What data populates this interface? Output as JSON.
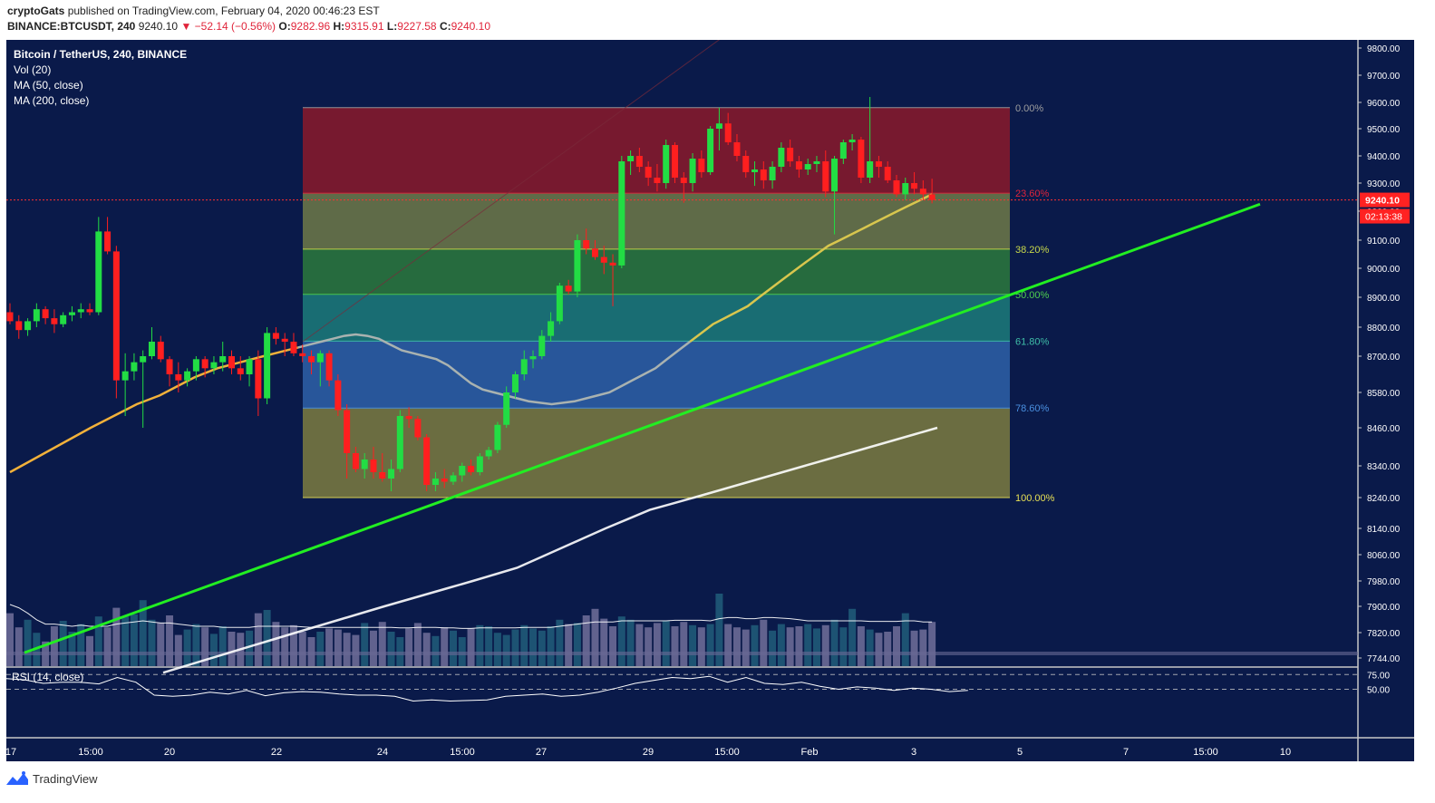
{
  "header": {
    "author": "cryptoGats",
    "published_text": "published on TradingView.com, February 04, 2020 00:46:23 EST",
    "symbol_line": "BINANCE:BTCUSDT, 240",
    "last": "9240.10",
    "change": "▼ −52.14 (−0.56%)",
    "o_label": "O:",
    "o_value": "9282.96",
    "h_label": "H:",
    "h_value": "9315.91",
    "l_label": "L:",
    "l_value": "9227.58",
    "c_label": "C:",
    "c_value": "9240.10"
  },
  "legend": [
    "Bitcoin / TetherUS, 240, BINANCE",
    "Vol (20)",
    "MA (50, close)",
    "MA (200, close)"
  ],
  "price_tag": {
    "value": "9240.10",
    "countdown": "02:13:38"
  },
  "rsi_label": "RSI (14, close)",
  "brand": "TradingView",
  "colors": {
    "background": "#0a1a4a",
    "up": "#22dd44",
    "down": "#ff1f1f",
    "ma50": "#a9b2b0",
    "ma200": "#ffffff",
    "trendline": "#22ee22",
    "price_tag": "#ff2222"
  },
  "chart_data": {
    "type": "candlestick",
    "price_axis_ticks": [
      "9800.00",
      "9700.00",
      "9600.00",
      "9500.00",
      "9400.00",
      "9300.00",
      "9200.00",
      "9100.00",
      "9000.00",
      "8900.00",
      "8800.00",
      "8700.00",
      "8580.00",
      "8460.00",
      "8340.00",
      "8240.00",
      "8140.00",
      "8060.00",
      "7980.00",
      "7900.00",
      "7820.00",
      "7744.00"
    ],
    "rsi_ticks": [
      "75.00",
      "50.00"
    ],
    "time_axis_labels": [
      "17",
      "15:00",
      "20",
      "22",
      "24",
      "15:00",
      "27",
      "29",
      "15:00",
      "Feb",
      "3",
      "5",
      "7",
      "15:00",
      "10"
    ],
    "fibonacci": {
      "high": 9580,
      "low": 8240,
      "levels": [
        {
          "label": "0.00%",
          "price": 9580,
          "fill": "#8b1a2a",
          "text_color": "#9e9e9e"
        },
        {
          "label": "23.60%",
          "price": 9264,
          "fill": "#6e7a48",
          "text_color": "#e0243a"
        },
        {
          "label": "38.20%",
          "price": 9068,
          "fill": "#2c7a3c",
          "text_color": "#c9d94a"
        },
        {
          "label": "50.00%",
          "price": 8910,
          "fill": "#1c7d7a",
          "text_color": "#4fcf4f"
        },
        {
          "label": "61.80%",
          "price": 8752,
          "fill": "#2e62a8",
          "text_color": "#3fbfa8"
        },
        {
          "label": "78.60%",
          "price": 8527,
          "fill": "#7d7d40",
          "text_color": "#4a90e0"
        },
        {
          "label": "100.00%",
          "price": 8240,
          "fill": "#7d7d40",
          "text_color": "#e7e055"
        }
      ]
    },
    "candles": [
      [
        8850,
        8880,
        8810,
        8820
      ],
      [
        8820,
        8840,
        8760,
        8790
      ],
      [
        8790,
        8830,
        8770,
        8820
      ],
      [
        8820,
        8880,
        8800,
        8860
      ],
      [
        8860,
        8870,
        8810,
        8830
      ],
      [
        8830,
        8860,
        8780,
        8810
      ],
      [
        8810,
        8850,
        8800,
        8840
      ],
      [
        8840,
        8870,
        8820,
        8850
      ],
      [
        8850,
        8880,
        8830,
        8860
      ],
      [
        8860,
        8880,
        8840,
        8850
      ],
      [
        8850,
        9180,
        8840,
        9130
      ],
      [
        9130,
        9180,
        9050,
        9060
      ],
      [
        9060,
        9080,
        8560,
        8620
      ],
      [
        8620,
        8710,
        8500,
        8650
      ],
      [
        8650,
        8710,
        8620,
        8680
      ],
      [
        8680,
        8720,
        8460,
        8700
      ],
      [
        8700,
        8800,
        8690,
        8750
      ],
      [
        8750,
        8770,
        8680,
        8690
      ],
      [
        8690,
        8700,
        8600,
        8640
      ],
      [
        8640,
        8680,
        8580,
        8620
      ],
      [
        8620,
        8660,
        8600,
        8650
      ],
      [
        8650,
        8700,
        8620,
        8690
      ],
      [
        8690,
        8700,
        8630,
        8660
      ],
      [
        8660,
        8700,
        8640,
        8680
      ],
      [
        8680,
        8750,
        8650,
        8700
      ],
      [
        8700,
        8720,
        8640,
        8660
      ],
      [
        8660,
        8700,
        8620,
        8640
      ],
      [
        8640,
        8700,
        8600,
        8690
      ],
      [
        8690,
        8720,
        8500,
        8560
      ],
      [
        8560,
        8800,
        8540,
        8780
      ],
      [
        8780,
        8800,
        8740,
        8760
      ],
      [
        8760,
        8780,
        8700,
        8750
      ],
      [
        8750,
        8780,
        8700,
        8710
      ],
      [
        8710,
        8740,
        8680,
        8700
      ],
      [
        8700,
        8720,
        8640,
        8680
      ],
      [
        8680,
        8720,
        8600,
        8710
      ],
      [
        8710,
        8720,
        8600,
        8620
      ],
      [
        8620,
        8640,
        8500,
        8520
      ],
      [
        8520,
        8540,
        8300,
        8380
      ],
      [
        8380,
        8400,
        8320,
        8330
      ],
      [
        8330,
        8380,
        8300,
        8360
      ],
      [
        8360,
        8400,
        8300,
        8320
      ],
      [
        8320,
        8380,
        8290,
        8300
      ],
      [
        8300,
        8360,
        8260,
        8330
      ],
      [
        8330,
        8520,
        8320,
        8500
      ],
      [
        8500,
        8530,
        8460,
        8490
      ],
      [
        8490,
        8500,
        8420,
        8430
      ],
      [
        8430,
        8440,
        8260,
        8280
      ],
      [
        8280,
        8320,
        8260,
        8300
      ],
      [
        8300,
        8330,
        8270,
        8290
      ],
      [
        8290,
        8320,
        8280,
        8310
      ],
      [
        8310,
        8350,
        8290,
        8340
      ],
      [
        8340,
        8360,
        8310,
        8320
      ],
      [
        8320,
        8380,
        8310,
        8370
      ],
      [
        8370,
        8400,
        8360,
        8390
      ],
      [
        8390,
        8480,
        8380,
        8470
      ],
      [
        8470,
        8600,
        8460,
        8580
      ],
      [
        8580,
        8650,
        8560,
        8640
      ],
      [
        8640,
        8720,
        8620,
        8690
      ],
      [
        8690,
        8720,
        8660,
        8700
      ],
      [
        8700,
        8790,
        8690,
        8770
      ],
      [
        8770,
        8850,
        8750,
        8820
      ],
      [
        8820,
        8950,
        8810,
        8940
      ],
      [
        8940,
        8960,
        8910,
        8920
      ],
      [
        8920,
        9120,
        8900,
        9100
      ],
      [
        9100,
        9140,
        9050,
        9070
      ],
      [
        9070,
        9100,
        9030,
        9040
      ],
      [
        9040,
        9080,
        8980,
        9020
      ],
      [
        9020,
        9050,
        8870,
        9010
      ],
      [
        9010,
        9400,
        9000,
        9380
      ],
      [
        9380,
        9420,
        9330,
        9400
      ],
      [
        9400,
        9430,
        9340,
        9360
      ],
      [
        9360,
        9380,
        9290,
        9320
      ],
      [
        9320,
        9370,
        9270,
        9300
      ],
      [
        9300,
        9460,
        9280,
        9440
      ],
      [
        9440,
        9450,
        9300,
        9320
      ],
      [
        9320,
        9340,
        9230,
        9300
      ],
      [
        9300,
        9410,
        9270,
        9390
      ],
      [
        9390,
        9420,
        9320,
        9340
      ],
      [
        9340,
        9510,
        9330,
        9500
      ],
      [
        9500,
        9580,
        9420,
        9520
      ],
      [
        9520,
        9560,
        9440,
        9450
      ],
      [
        9450,
        9480,
        9380,
        9400
      ],
      [
        9400,
        9420,
        9320,
        9340
      ],
      [
        9340,
        9380,
        9290,
        9350
      ],
      [
        9350,
        9380,
        9280,
        9310
      ],
      [
        9310,
        9380,
        9280,
        9360
      ],
      [
        9360,
        9450,
        9340,
        9430
      ],
      [
        9430,
        9460,
        9360,
        9380
      ],
      [
        9380,
        9400,
        9320,
        9350
      ],
      [
        9350,
        9390,
        9330,
        9370
      ],
      [
        9370,
        9400,
        9340,
        9380
      ],
      [
        9380,
        9420,
        9250,
        9270
      ],
      [
        9270,
        9400,
        9120,
        9390
      ],
      [
        9390,
        9460,
        9370,
        9450
      ],
      [
        9450,
        9480,
        9420,
        9460
      ],
      [
        9460,
        9470,
        9300,
        9320
      ],
      [
        9320,
        9620,
        9300,
        9380
      ],
      [
        9380,
        9400,
        9320,
        9360
      ],
      [
        9360,
        9380,
        9300,
        9310
      ],
      [
        9310,
        9330,
        9250,
        9260
      ],
      [
        9260,
        9320,
        9240,
        9300
      ],
      [
        9300,
        9340,
        9260,
        9280
      ],
      [
        9280,
        9310,
        9240,
        9260
      ],
      [
        9260,
        9316,
        9228,
        9240
      ]
    ],
    "volume": [
      820,
      690,
      760,
      640,
      560,
      700,
      750,
      650,
      720,
      610,
      790,
      690,
      870,
      790,
      810,
      940,
      760,
      730,
      800,
      620,
      670,
      720,
      690,
      630,
      700,
      650,
      640,
      660,
      820,
      850,
      740,
      690,
      710,
      650,
      600,
      650,
      680,
      670,
      640,
      620,
      730,
      660,
      740,
      650,
      600,
      680,
      730,
      640,
      610,
      690,
      660,
      600,
      680,
      710,
      700,
      640,
      620,
      670,
      710,
      680,
      660,
      700,
      760,
      720,
      730,
      800,
      860,
      770,
      700,
      790,
      760,
      720,
      690,
      730,
      750,
      700,
      740,
      710,
      690,
      720,
      1000,
      720,
      690,
      670,
      710,
      760,
      660,
      720,
      690,
      700,
      720,
      680,
      710,
      760,
      690,
      860,
      700,
      670,
      640,
      650,
      700,
      820,
      660,
      670,
      740
    ],
    "volume_avg": [
      900,
      870,
      820,
      760,
      720,
      720,
      710,
      700,
      710,
      700,
      700,
      700,
      720,
      730,
      740,
      750,
      740,
      730,
      730,
      720,
      710,
      700,
      700,
      700,
      690,
      690,
      690,
      690,
      700,
      700,
      700,
      700,
      700,
      695,
      690,
      690,
      690,
      690,
      690,
      690,
      690,
      690,
      690,
      690,
      685,
      685,
      690,
      690,
      690,
      685,
      685,
      680,
      680,
      685,
      685,
      685,
      685,
      685,
      690,
      690,
      690,
      690,
      700,
      710,
      720,
      730,
      740,
      740,
      740,
      750,
      750,
      750,
      750,
      750,
      750,
      755,
      755,
      755,
      755,
      750,
      770,
      780,
      780,
      770,
      770,
      780,
      780,
      775,
      770,
      760,
      750,
      750,
      750,
      750,
      750,
      750,
      750,
      745,
      745,
      745,
      745,
      750,
      750,
      740,
      740
    ],
    "ma50": [
      8320,
      8340,
      8360,
      8380,
      8400,
      8420,
      8440,
      8460,
      8480,
      8500,
      8520,
      8540,
      8555,
      8570,
      8590,
      8610,
      8630,
      8645,
      8660,
      8670,
      8680,
      8690,
      8700,
      8710,
      8720,
      8730,
      8740,
      8750,
      8760,
      8770,
      8775,
      8770,
      8760,
      8740,
      8720,
      8710,
      8700,
      8690,
      8670,
      8640,
      8610,
      8590,
      8580,
      8570,
      8560,
      8550,
      8545,
      8540,
      8545,
      8550,
      8560,
      8570,
      8580,
      8600,
      8620,
      8640,
      8660,
      8690,
      8720,
      8750,
      8780,
      8810,
      8830,
      8850,
      8870,
      8900,
      8930,
      8960,
      8990,
      9020,
      9050,
      9080,
      9100,
      9120,
      9140,
      9160,
      9180,
      9200,
      9220,
      9240,
      9260
    ],
    "ma50_start_index": 0,
    "ma200": [
      7700,
      7720,
      7740,
      7760,
      7780,
      7800,
      7820,
      7840,
      7860,
      7880,
      7900,
      7920,
      7940,
      7960,
      7980,
      8000,
      8020,
      8050,
      8080,
      8110,
      8140,
      8170,
      8200,
      8220,
      8240,
      8260,
      8280,
      8300,
      8320,
      8340,
      8360,
      8380,
      8400,
      8420,
      8440,
      8460
    ],
    "rsi": [
      68,
      66,
      60,
      62,
      62,
      59,
      70,
      62,
      40,
      38,
      40,
      45,
      42,
      48,
      39,
      44,
      46,
      45,
      42,
      40,
      40,
      38,
      30,
      32,
      30,
      31,
      32,
      38,
      40,
      42,
      38,
      40,
      45,
      52,
      60,
      65,
      70,
      68,
      72,
      62,
      70,
      60,
      58,
      62,
      55,
      50,
      54,
      52,
      48,
      52,
      50,
      46,
      48
    ],
    "trendline": {
      "from": {
        "date": "2020-01-17",
        "price": 7760
      },
      "to": {
        "date": "2020-02-08",
        "price": 9225
      }
    },
    "current_price": 9240.1
  }
}
